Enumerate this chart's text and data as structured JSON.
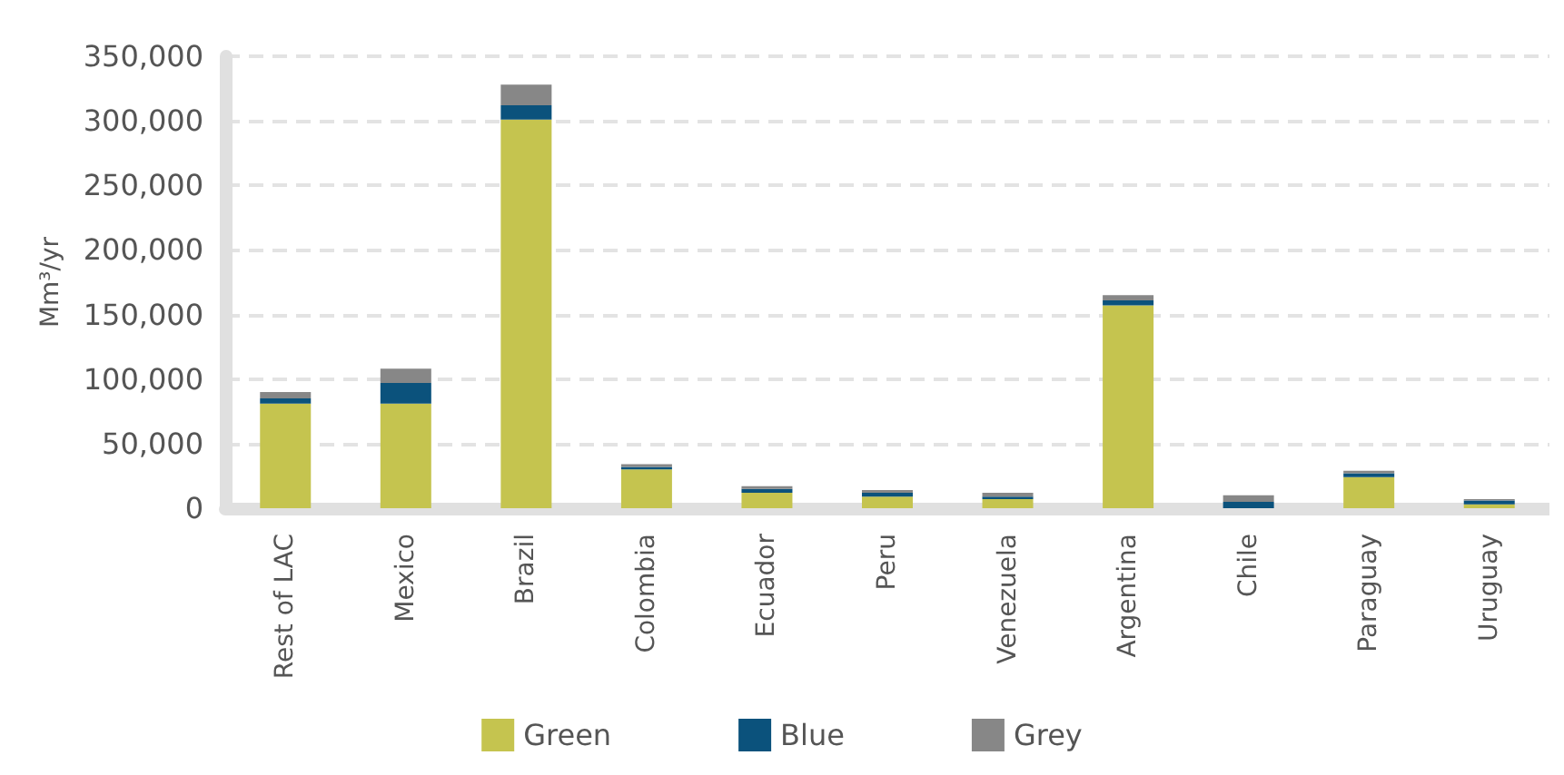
{
  "chart_data": {
    "type": "bar",
    "stacked": true,
    "ylabel": "Mm³/yr",
    "categories": [
      "Rest of LAC",
      "Mexico",
      "Brazil",
      "Colombia",
      "Ecuador",
      "Peru",
      "Venezuela",
      "Argentina",
      "Chile",
      "Paraguay",
      "Uruguay"
    ],
    "series": [
      {
        "name": "Green",
        "color": "#c5c44f",
        "values": [
          81000,
          81000,
          301000,
          30000,
          12000,
          9000,
          7000,
          157000,
          0,
          24000,
          3000
        ]
      },
      {
        "name": "Blue",
        "color": "#0b527c",
        "values": [
          4000,
          16000,
          11000,
          2000,
          3000,
          3000,
          2000,
          4000,
          5000,
          3000,
          3000
        ]
      },
      {
        "name": "Grey",
        "color": "#878787",
        "values": [
          5000,
          11000,
          16000,
          2000,
          2000,
          2000,
          3000,
          4000,
          5000,
          2000,
          1000
        ]
      }
    ],
    "ylim": [
      0,
      350000
    ],
    "yticks": [
      0,
      {
        "value": 50000,
        "label": "50,000"
      },
      {
        "value": 100000,
        "label": "100,000"
      },
      {
        "value": 150000,
        "label": "150,000"
      },
      {
        "value": 200000,
        "label": "200,000"
      },
      {
        "value": 250000,
        "label": "250,000"
      },
      {
        "value": 300000,
        "label": "300,000"
      },
      {
        "value": 350000,
        "label": "350,000"
      }
    ],
    "grid": "y",
    "legend": "bottom"
  }
}
